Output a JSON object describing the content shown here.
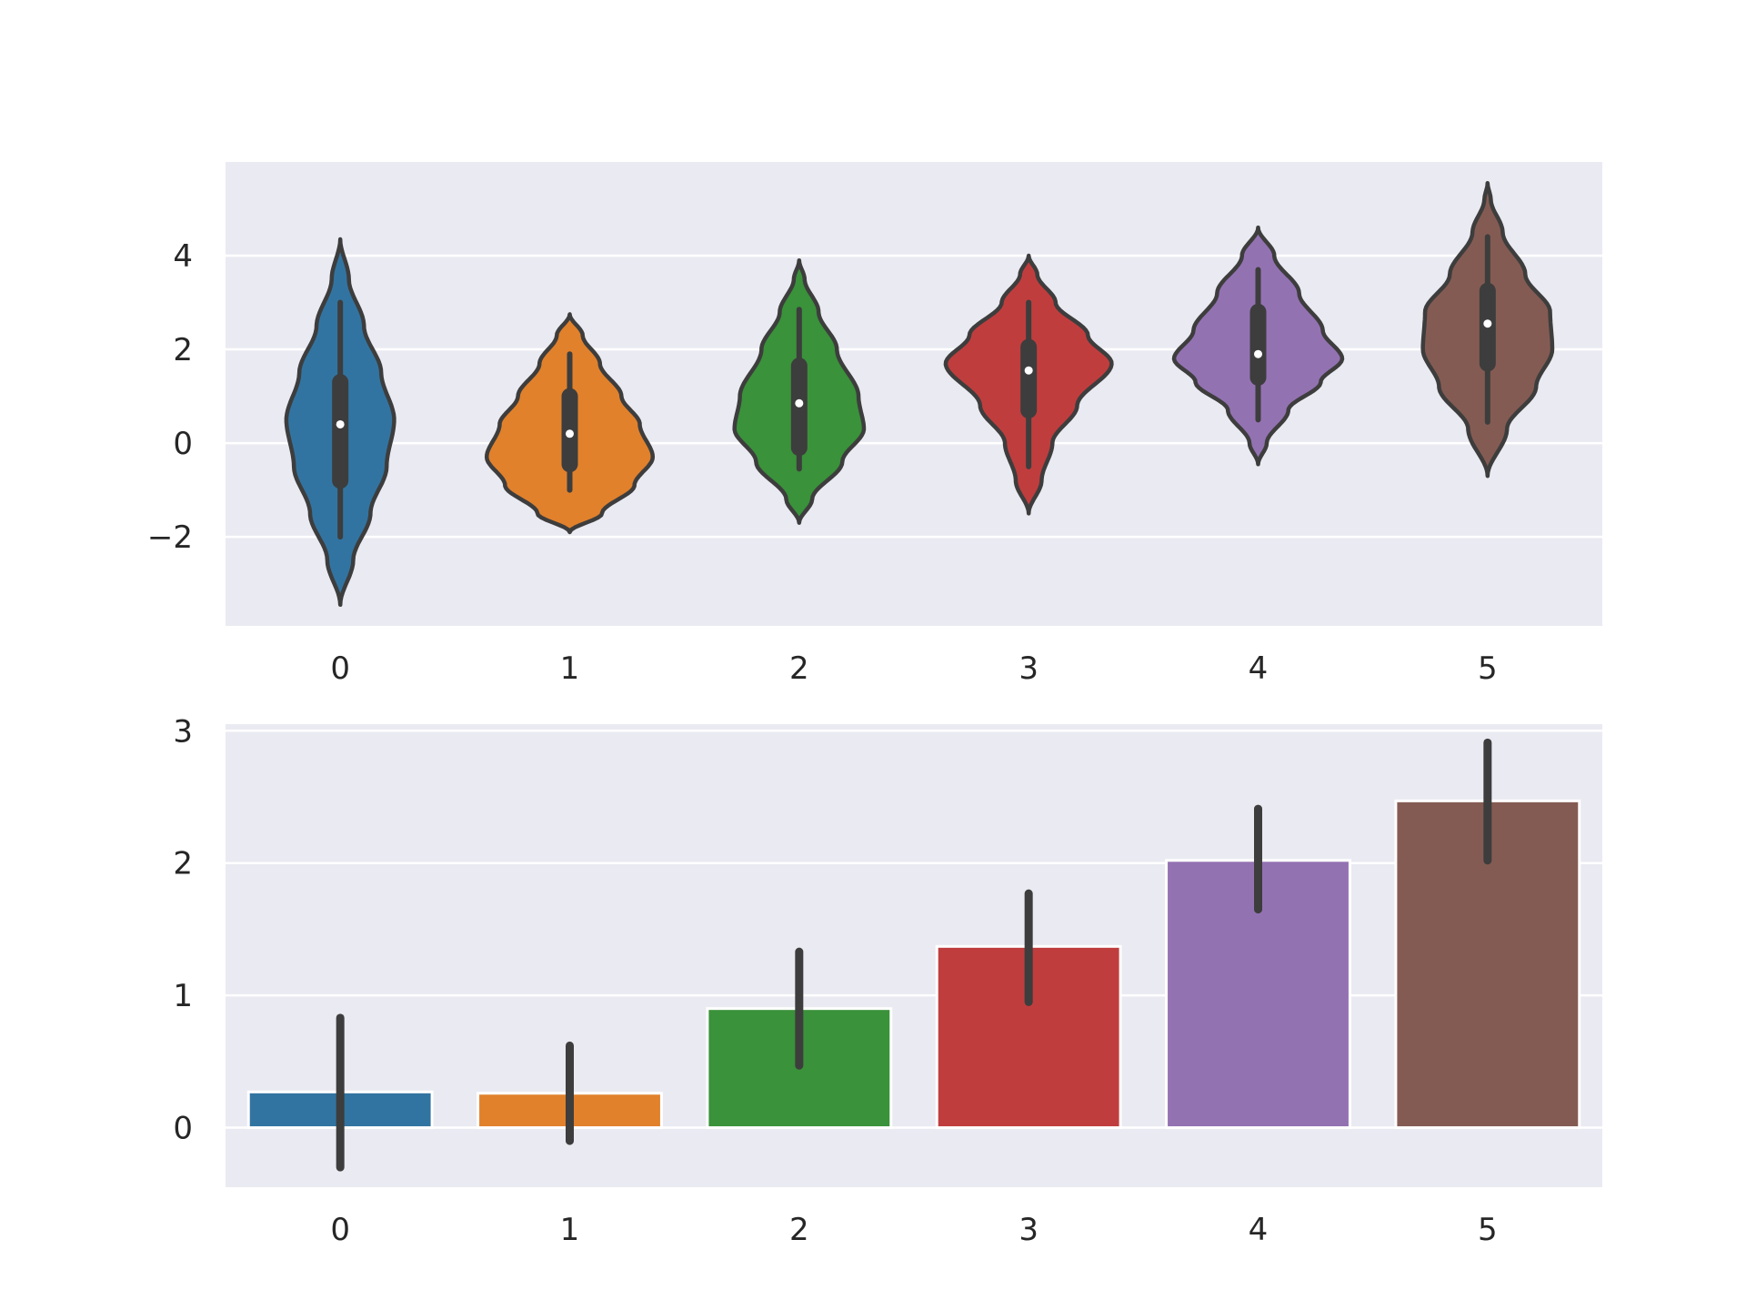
{
  "chart_data": [
    {
      "type": "violin",
      "categories": [
        "0",
        "1",
        "2",
        "3",
        "4",
        "5"
      ],
      "ylim": [
        -3.9,
        6.0
      ],
      "y_ticks": [
        -2,
        0,
        2,
        4
      ],
      "y_tick_labels": [
        "−2",
        "0",
        "2",
        "4"
      ],
      "grid": true,
      "colors": [
        "#3274a1",
        "#e1812c",
        "#3a923a",
        "#c03d3e",
        "#9372b2",
        "#845b53"
      ],
      "edge_color": "#3d3d3d",
      "background": "#eaeaf2",
      "series": [
        {
          "category": "0",
          "median": 0.4,
          "q1": -0.8,
          "q3": 1.3,
          "whisker_low": -2.0,
          "whisker_high": 3.0,
          "density": [
            [
              -3.45,
              0.0
            ],
            [
              -2.5,
              0.12
            ],
            [
              -1.5,
              0.28
            ],
            [
              -0.5,
              0.43
            ],
            [
              0.5,
              0.5
            ],
            [
              1.5,
              0.38
            ],
            [
              2.5,
              0.22
            ],
            [
              3.5,
              0.08
            ],
            [
              4.35,
              0.0
            ]
          ]
        },
        {
          "category": "1",
          "median": 0.2,
          "q1": -0.45,
          "q3": 1.0,
          "whisker_low": -1.0,
          "whisker_high": 1.9,
          "density": [
            [
              -1.9,
              0.0
            ],
            [
              -1.5,
              0.3
            ],
            [
              -0.9,
              0.6
            ],
            [
              -0.3,
              0.77
            ],
            [
              0.4,
              0.65
            ],
            [
              1.0,
              0.48
            ],
            [
              1.7,
              0.28
            ],
            [
              2.3,
              0.12
            ],
            [
              2.75,
              0.0
            ]
          ]
        },
        {
          "category": "2",
          "median": 0.85,
          "q1": -0.1,
          "q3": 1.65,
          "whisker_low": -0.55,
          "whisker_high": 2.85,
          "density": [
            [
              -1.7,
              0.0
            ],
            [
              -1.2,
              0.12
            ],
            [
              -0.4,
              0.4
            ],
            [
              0.3,
              0.6
            ],
            [
              1.0,
              0.55
            ],
            [
              2.0,
              0.35
            ],
            [
              2.8,
              0.18
            ],
            [
              3.5,
              0.05
            ],
            [
              3.9,
              0.0
            ]
          ]
        },
        {
          "category": "3",
          "median": 1.55,
          "q1": 0.7,
          "q3": 2.05,
          "whisker_low": -0.5,
          "whisker_high": 3.0,
          "density": [
            [
              -1.5,
              0.0
            ],
            [
              -0.8,
              0.12
            ],
            [
              0.0,
              0.22
            ],
            [
              0.8,
              0.45
            ],
            [
              1.7,
              0.77
            ],
            [
              2.3,
              0.55
            ],
            [
              3.0,
              0.25
            ],
            [
              3.6,
              0.08
            ],
            [
              4.0,
              0.0
            ]
          ]
        },
        {
          "category": "4",
          "median": 1.9,
          "q1": 1.4,
          "q3": 2.8,
          "whisker_low": 0.5,
          "whisker_high": 3.7,
          "density": [
            [
              -0.45,
              0.0
            ],
            [
              0.0,
              0.08
            ],
            [
              0.7,
              0.28
            ],
            [
              1.3,
              0.58
            ],
            [
              1.8,
              0.78
            ],
            [
              2.4,
              0.6
            ],
            [
              3.2,
              0.38
            ],
            [
              4.0,
              0.15
            ],
            [
              4.6,
              0.0
            ]
          ]
        },
        {
          "category": "5",
          "median": 2.55,
          "q1": 1.7,
          "q3": 3.25,
          "whisker_low": 0.45,
          "whisker_high": 4.4,
          "density": [
            [
              -0.7,
              0.0
            ],
            [
              0.3,
              0.18
            ],
            [
              1.2,
              0.45
            ],
            [
              2.0,
              0.6
            ],
            [
              2.8,
              0.58
            ],
            [
              3.6,
              0.35
            ],
            [
              4.5,
              0.14
            ],
            [
              5.2,
              0.03
            ],
            [
              5.55,
              0.0
            ]
          ]
        }
      ]
    },
    {
      "type": "bar",
      "categories": [
        "0",
        "1",
        "2",
        "3",
        "4",
        "5"
      ],
      "values": [
        0.27,
        0.26,
        0.9,
        1.37,
        2.02,
        2.47
      ],
      "error_low": [
        -0.3,
        -0.1,
        0.47,
        0.95,
        1.65,
        2.02
      ],
      "error_high": [
        0.83,
        0.62,
        1.33,
        1.77,
        2.41,
        2.91
      ],
      "ylim": [
        -0.45,
        3.05
      ],
      "y_ticks": [
        0,
        1,
        2,
        3
      ],
      "y_tick_labels": [
        "0",
        "1",
        "2",
        "3"
      ],
      "grid": true,
      "colors": [
        "#3274a1",
        "#e1812c",
        "#3a923a",
        "#c03d3e",
        "#9372b2",
        "#845b53"
      ],
      "error_color": "#3d3d3d",
      "background": "#eaeaf2"
    }
  ]
}
